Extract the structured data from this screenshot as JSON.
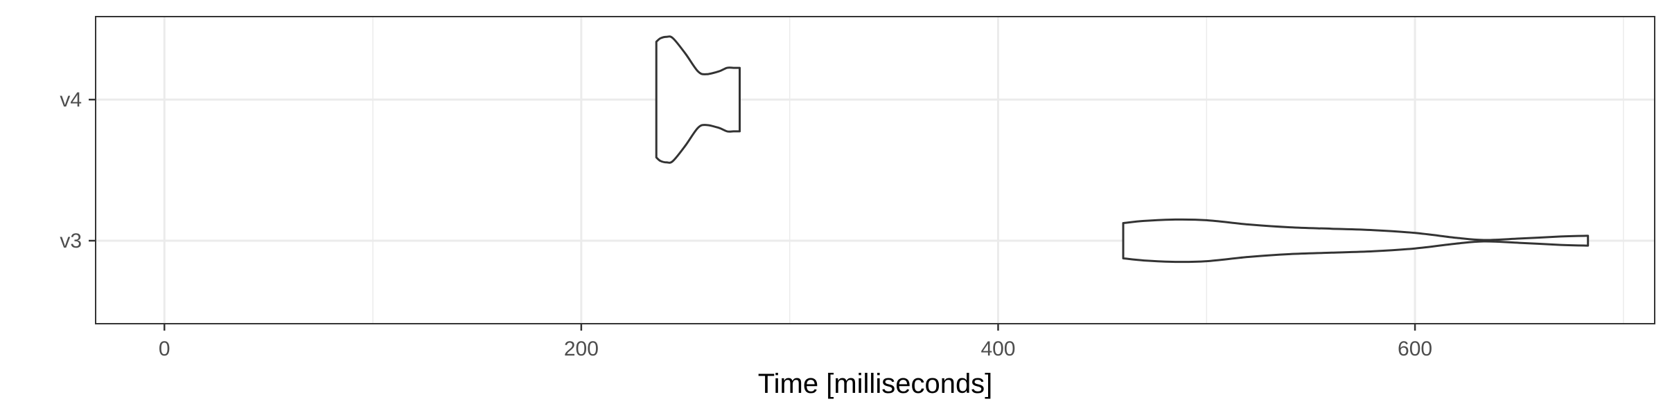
{
  "chart_data": {
    "type": "violin",
    "orientation": "horizontal",
    "xlabel": "Time [milliseconds]",
    "ylabel": "",
    "xlim": [
      -33,
      715
    ],
    "x_ticks": [
      0,
      200,
      400,
      600
    ],
    "x_tick_labels": [
      "0",
      "200",
      "400",
      "600"
    ],
    "x_minor_ticks": [
      100,
      300,
      500,
      700
    ],
    "categories": [
      "v3",
      "v4"
    ],
    "grid": true,
    "colors": {
      "outline": "#333333",
      "fill": "#ffffff",
      "grid": "#ebebeb",
      "tick_text": "#4d4d4d"
    },
    "series": [
      {
        "category": "v4",
        "min": 236,
        "max": 276,
        "density_profile": [
          {
            "x": 236,
            "w": 0.82
          },
          {
            "x": 238,
            "w": 0.87
          },
          {
            "x": 241,
            "w": 0.89
          },
          {
            "x": 244,
            "w": 0.87
          },
          {
            "x": 250,
            "w": 0.65
          },
          {
            "x": 256,
            "w": 0.4
          },
          {
            "x": 260,
            "w": 0.36
          },
          {
            "x": 266,
            "w": 0.4
          },
          {
            "x": 270,
            "w": 0.45
          },
          {
            "x": 273,
            "w": 0.45
          },
          {
            "x": 276,
            "w": 0.45
          }
        ]
      },
      {
        "category": "v3",
        "min": 460,
        "max": 683,
        "density_profile": [
          {
            "x": 460,
            "w": 0.25
          },
          {
            "x": 470,
            "w": 0.28
          },
          {
            "x": 485,
            "w": 0.3
          },
          {
            "x": 500,
            "w": 0.29
          },
          {
            "x": 520,
            "w": 0.23
          },
          {
            "x": 540,
            "w": 0.19
          },
          {
            "x": 560,
            "w": 0.17
          },
          {
            "x": 580,
            "w": 0.15
          },
          {
            "x": 600,
            "w": 0.11
          },
          {
            "x": 620,
            "w": 0.04
          },
          {
            "x": 633,
            "w": 0.01
          },
          {
            "x": 650,
            "w": 0.03
          },
          {
            "x": 670,
            "w": 0.06
          },
          {
            "x": 683,
            "w": 0.07
          }
        ]
      }
    ]
  }
}
